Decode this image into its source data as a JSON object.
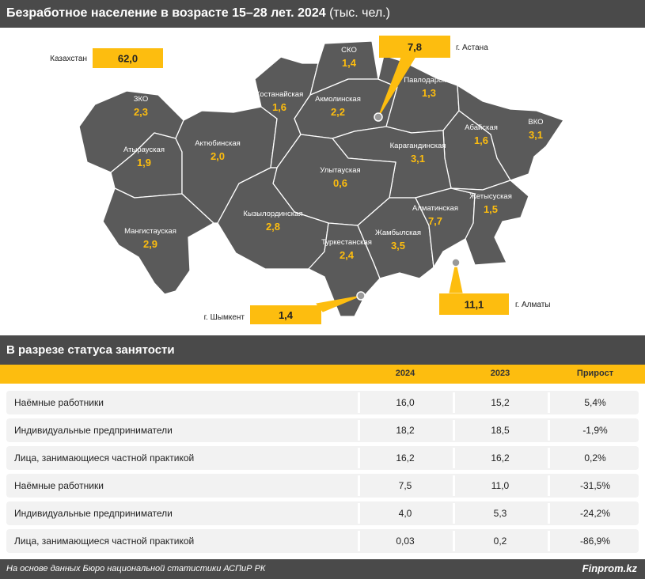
{
  "title": {
    "main": "Безработное население в возрасте 15–28 лет. 2024",
    "unit": "(тыс. чел.)"
  },
  "colors": {
    "map_fill": "#5a5a5a",
    "border": "#ffffff",
    "accent": "#fdbd0f",
    "header_bg": "#4a4a4a"
  },
  "chart_data": [
    {
      "type": "map",
      "series": [
        {
          "values": [
            {
              "region": "ЗКО",
              "value": "2,3"
            },
            {
              "region": "Атырауская",
              "value": "1,9"
            },
            {
              "region": "Мангистауская",
              "value": "2,9"
            },
            {
              "region": "Актюбинская",
              "value": "2,0"
            },
            {
              "region": "Костанайская",
              "value": "1,6"
            },
            {
              "region": "СКО",
              "value": "1,4"
            },
            {
              "region": "Акмолинская",
              "value": "2,2"
            },
            {
              "region": "Павлодарская",
              "value": "1,3"
            },
            {
              "region": "ВКО",
              "value": "3,1"
            },
            {
              "region": "Абайская",
              "value": "1,6"
            },
            {
              "region": "Карагандинская",
              "value": "3,1"
            },
            {
              "region": "Улытауская",
              "value": "0,6"
            },
            {
              "region": "Кызылординская",
              "value": "2,8"
            },
            {
              "region": "Туркестанская",
              "value": "2,4"
            },
            {
              "region": "Жамбылская",
              "value": "3,5"
            },
            {
              "region": "Алматинская",
              "value": "7,7"
            },
            {
              "region": "Жетысуская",
              "value": "1,5"
            }
          ]
        }
      ],
      "callouts": [
        {
          "label": "Казахстан",
          "value": "62,0"
        },
        {
          "label": "г. Астана",
          "value": "7,8"
        },
        {
          "label": "г. Шымкент",
          "value": "1,4"
        },
        {
          "label": "г. Алматы",
          "value": "11,1"
        }
      ]
    },
    {
      "type": "table",
      "title": "В разрезе статуса занятости",
      "columns": [
        "",
        "2024",
        "2023",
        "Прирост"
      ],
      "rows": [
        [
          "Наёмные работники",
          "16,0",
          "15,2",
          "5,4%"
        ],
        [
          "Индивидуальные предприниматели",
          "18,2",
          "18,5",
          "-1,9%"
        ],
        [
          "Лица, занимающиеся частной практикой",
          "16,2",
          "16,2",
          "0,2%"
        ],
        [
          "Наёмные работники",
          "7,5",
          "11,0",
          "-31,5%"
        ],
        [
          "Индивидуальные предприниматели",
          "4,0",
          "5,3",
          "-24,2%"
        ],
        [
          "Лица, занимающиеся частной практикой",
          "0,03",
          "0,2",
          "-86,9%"
        ]
      ]
    }
  ],
  "footer": {
    "source": "На основе данных Бюро национальной статистики АСПиР РК",
    "brand": "Finprom.kz"
  }
}
